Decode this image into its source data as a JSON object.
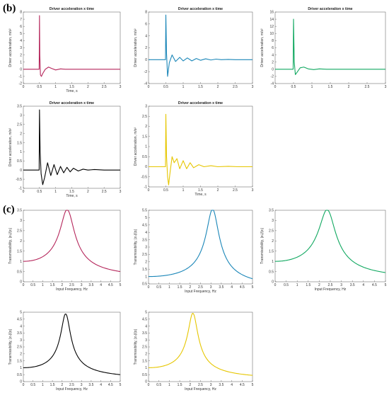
{
  "panel_labels": {
    "b": "(b)",
    "c": "(c)"
  },
  "colors": {
    "magenta": "#b5265b",
    "blue": "#1a86b8",
    "green": "#10a860",
    "black": "#000000",
    "yellow": "#e6c600"
  },
  "chart_data": [
    {
      "id": "b1",
      "type": "line",
      "color_key": "magenta",
      "title": "Driver acceleration x time",
      "xlabel": "Time, s",
      "ylabel": "Driver acceleration, m/s²",
      "xlim": [
        0,
        3
      ],
      "ylim": [
        -2,
        8
      ],
      "xticks": [
        "0",
        "0.5",
        "1",
        "1.5",
        "2",
        "2.5",
        "3"
      ],
      "yticks": [
        "-2",
        "-1",
        "0",
        "1",
        "2",
        "3",
        "4",
        "5",
        "6",
        "7",
        "8"
      ],
      "x": [
        0,
        0.49,
        0.5,
        0.51,
        0.53,
        0.56,
        0.6,
        0.68,
        0.78,
        0.88,
        1.0,
        1.15,
        1.3,
        1.5,
        2.0,
        3.0
      ],
      "y": [
        0,
        0,
        7.5,
        2,
        -0.8,
        -1,
        -0.6,
        0,
        0.3,
        0.1,
        -0.1,
        0.05,
        0,
        0,
        0,
        0
      ]
    },
    {
      "id": "b2",
      "type": "line",
      "color_key": "blue",
      "title": "Driver acceleration x time",
      "xlabel": "",
      "ylabel": "Driver acceleration, m/s²",
      "xlim": [
        0,
        3
      ],
      "ylim": [
        -4,
        8
      ],
      "xticks": [
        "0",
        "0.5",
        "1",
        "1.5",
        "2",
        "2.5",
        "3"
      ],
      "yticks": [
        "-4",
        "-2",
        "0",
        "2",
        "4",
        "6",
        "8"
      ],
      "x": [
        0,
        0.49,
        0.5,
        0.52,
        0.55,
        0.6,
        0.68,
        0.78,
        0.9,
        1.0,
        1.12,
        1.25,
        1.38,
        1.5,
        1.65,
        1.8,
        1.95,
        2.1,
        2.3,
        2.5,
        3.0
      ],
      "y": [
        0,
        0,
        7.5,
        1,
        -2.8,
        -0.5,
        0.8,
        -0.3,
        0.4,
        -0.2,
        0.3,
        -0.2,
        0.2,
        -0.1,
        0.15,
        -0.05,
        0.1,
        0,
        0.05,
        0,
        0
      ]
    },
    {
      "id": "b3",
      "type": "line",
      "color_key": "green",
      "title": "Driver acceleration x time",
      "xlabel": "",
      "ylabel": "Driver acceleration, m/s²",
      "xlim": [
        0,
        3
      ],
      "ylim": [
        -4,
        16
      ],
      "xticks": [
        "0",
        "0.5",
        "1",
        "1.5",
        "2",
        "2.5",
        "3"
      ],
      "yticks": [
        "-4",
        "-2",
        "0",
        "2",
        "4",
        "6",
        "8",
        "10",
        "12",
        "14",
        "16"
      ],
      "x": [
        0,
        0.49,
        0.5,
        0.52,
        0.55,
        0.6,
        0.68,
        0.78,
        0.9,
        1.05,
        1.2,
        1.4,
        1.6,
        2.0,
        3.0
      ],
      "y": [
        0,
        0,
        14,
        2,
        -1.5,
        -0.8,
        0.4,
        0.6,
        0.1,
        -0.1,
        0.1,
        0,
        0,
        0,
        0
      ]
    },
    {
      "id": "b4",
      "type": "line",
      "color_key": "black",
      "title": "Driver acceleration x time",
      "xlabel": "Time, s",
      "ylabel": "Driver acceleration, m/s²",
      "xlim": [
        0,
        3
      ],
      "ylim": [
        -1,
        3.5
      ],
      "xticks": [
        "0",
        "0.5",
        "1",
        "1.5",
        "2",
        "2.5",
        "3"
      ],
      "yticks": [
        "-1",
        "-0.5",
        "0",
        "0.5",
        "1",
        "1.5",
        "2",
        "2.5",
        "3",
        "3.5"
      ],
      "x": [
        0,
        0.49,
        0.5,
        0.52,
        0.55,
        0.6,
        0.66,
        0.75,
        0.85,
        0.95,
        1.05,
        1.15,
        1.25,
        1.35,
        1.45,
        1.55,
        1.7,
        1.85,
        2.0,
        2.2,
        2.5,
        3.0
      ],
      "y": [
        0,
        0,
        3.3,
        1,
        -0.2,
        -0.8,
        -0.4,
        0.4,
        -0.3,
        0.3,
        -0.25,
        0.2,
        -0.15,
        0.15,
        -0.1,
        0.1,
        -0.05,
        0.05,
        0,
        0.03,
        0,
        0
      ]
    },
    {
      "id": "b5",
      "type": "line",
      "color_key": "yellow",
      "title": "Driver acceleration x time",
      "xlabel": "Time, s",
      "ylabel": "Driver acceleration, m/s²",
      "xlim": [
        0,
        3
      ],
      "ylim": [
        -1,
        3
      ],
      "xticks": [
        "0",
        "0.5",
        "1",
        "1.5",
        "2",
        "2.5",
        "3"
      ],
      "yticks": [
        "-1",
        "-0.5",
        "0",
        "0.5",
        "1",
        "1.5",
        "2",
        "2.5",
        "3"
      ],
      "x": [
        0,
        0.49,
        0.5,
        0.52,
        0.55,
        0.58,
        0.62,
        0.68,
        0.74,
        0.82,
        0.9,
        1.0,
        1.1,
        1.2,
        1.3,
        1.45,
        1.6,
        1.8,
        2.0,
        2.3,
        2.6,
        3.0
      ],
      "y": [
        0,
        0,
        2.6,
        0.5,
        -0.5,
        -0.9,
        -0.3,
        0.5,
        0.2,
        0.4,
        -0.1,
        0.3,
        -0.1,
        0.2,
        -0.05,
        0.1,
        0,
        0.05,
        0,
        0.02,
        0,
        0
      ]
    },
    {
      "id": "c1",
      "type": "line",
      "color_key": "magenta",
      "curve": "transmissibility",
      "title": "",
      "xlabel": "Input Frequency, Hz",
      "ylabel": "Transmissibility, |zₛ|/|zᵢ|",
      "xlim": [
        0,
        5
      ],
      "ylim": [
        0,
        3.5
      ],
      "xticks": [
        "0",
        "0.5",
        "1",
        "1.5",
        "2",
        "2.5",
        "3",
        "3.5",
        "4",
        "4.5",
        "5"
      ],
      "yticks": [
        "0",
        "0.5",
        "1",
        "1.5",
        "2",
        "2.5",
        "3",
        "3.5"
      ],
      "fn": 2.3,
      "peak": 3.35,
      "end": 0.5
    },
    {
      "id": "c2",
      "type": "line",
      "color_key": "blue",
      "curve": "transmissibility",
      "title": "",
      "xlabel": "Input Frequency, Hz",
      "ylabel": "Transmissibility, |zₛ|/|zᵢ|",
      "xlim": [
        0,
        5
      ],
      "ylim": [
        0.5,
        5.5
      ],
      "xticks": [
        "0",
        "0.5",
        "1",
        "1.5",
        "2",
        "2.5",
        "3",
        "3.5",
        "4",
        "4.5",
        "5"
      ],
      "yticks": [
        "0.5",
        "1",
        "1.5",
        "2",
        "2.5",
        "3",
        "3.5",
        "4",
        "4.5",
        "5",
        "5.5"
      ],
      "fn": 3.1,
      "peak": 5.45,
      "end": 0.85
    },
    {
      "id": "c3",
      "type": "line",
      "color_key": "green",
      "curve": "transmissibility",
      "title": "",
      "xlabel": "Input Frequency, Hz",
      "ylabel": "Transmissibility, |zₛ|/|zᵢ|",
      "xlim": [
        0,
        5
      ],
      "ylim": [
        0,
        3.5
      ],
      "xticks": [
        "0",
        "0.5",
        "1",
        "1.5",
        "2",
        "2.5",
        "3",
        "3.5",
        "4",
        "4.5",
        "5"
      ],
      "yticks": [
        "0",
        "0.5",
        "1",
        "1.5",
        "2",
        "2.5",
        "3",
        "3.5"
      ],
      "fn": 2.4,
      "peak": 3.35,
      "end": 0.45
    },
    {
      "id": "c4",
      "type": "line",
      "color_key": "black",
      "curve": "transmissibility",
      "title": "",
      "xlabel": "Input Frequency, Hz",
      "ylabel": "Transmissibility, |zₛ|/|zᵢ|",
      "xlim": [
        0,
        5
      ],
      "ylim": [
        0,
        5
      ],
      "xticks": [
        "0",
        "0.5",
        "1",
        "1.5",
        "2",
        "2.5",
        "3",
        "3.5",
        "4",
        "4.5",
        "5"
      ],
      "yticks": [
        "0",
        "0.5",
        "1",
        "1.5",
        "2",
        "2.5",
        "3",
        "3.5",
        "4",
        "4.5",
        "5"
      ],
      "fn": 2.2,
      "peak": 4.75,
      "end": 0.5
    },
    {
      "id": "c5",
      "type": "line",
      "color_key": "yellow",
      "curve": "transmissibility",
      "title": "",
      "xlabel": "Input Frequency, Hz",
      "ylabel": "Transmissibility, |zₛ|/|zᵢ|",
      "xlim": [
        0,
        5
      ],
      "ylim": [
        0,
        5
      ],
      "xticks": [
        "0",
        "0.5",
        "1",
        "1.5",
        "2",
        "2.5",
        "3",
        "3.5",
        "4",
        "4.5",
        "5"
      ],
      "yticks": [
        "0",
        "0.5",
        "1",
        "1.5",
        "2",
        "2.5",
        "3",
        "3.5",
        "4",
        "4.5",
        "5"
      ],
      "fn": 2.15,
      "peak": 4.8,
      "end": 0.45
    }
  ]
}
